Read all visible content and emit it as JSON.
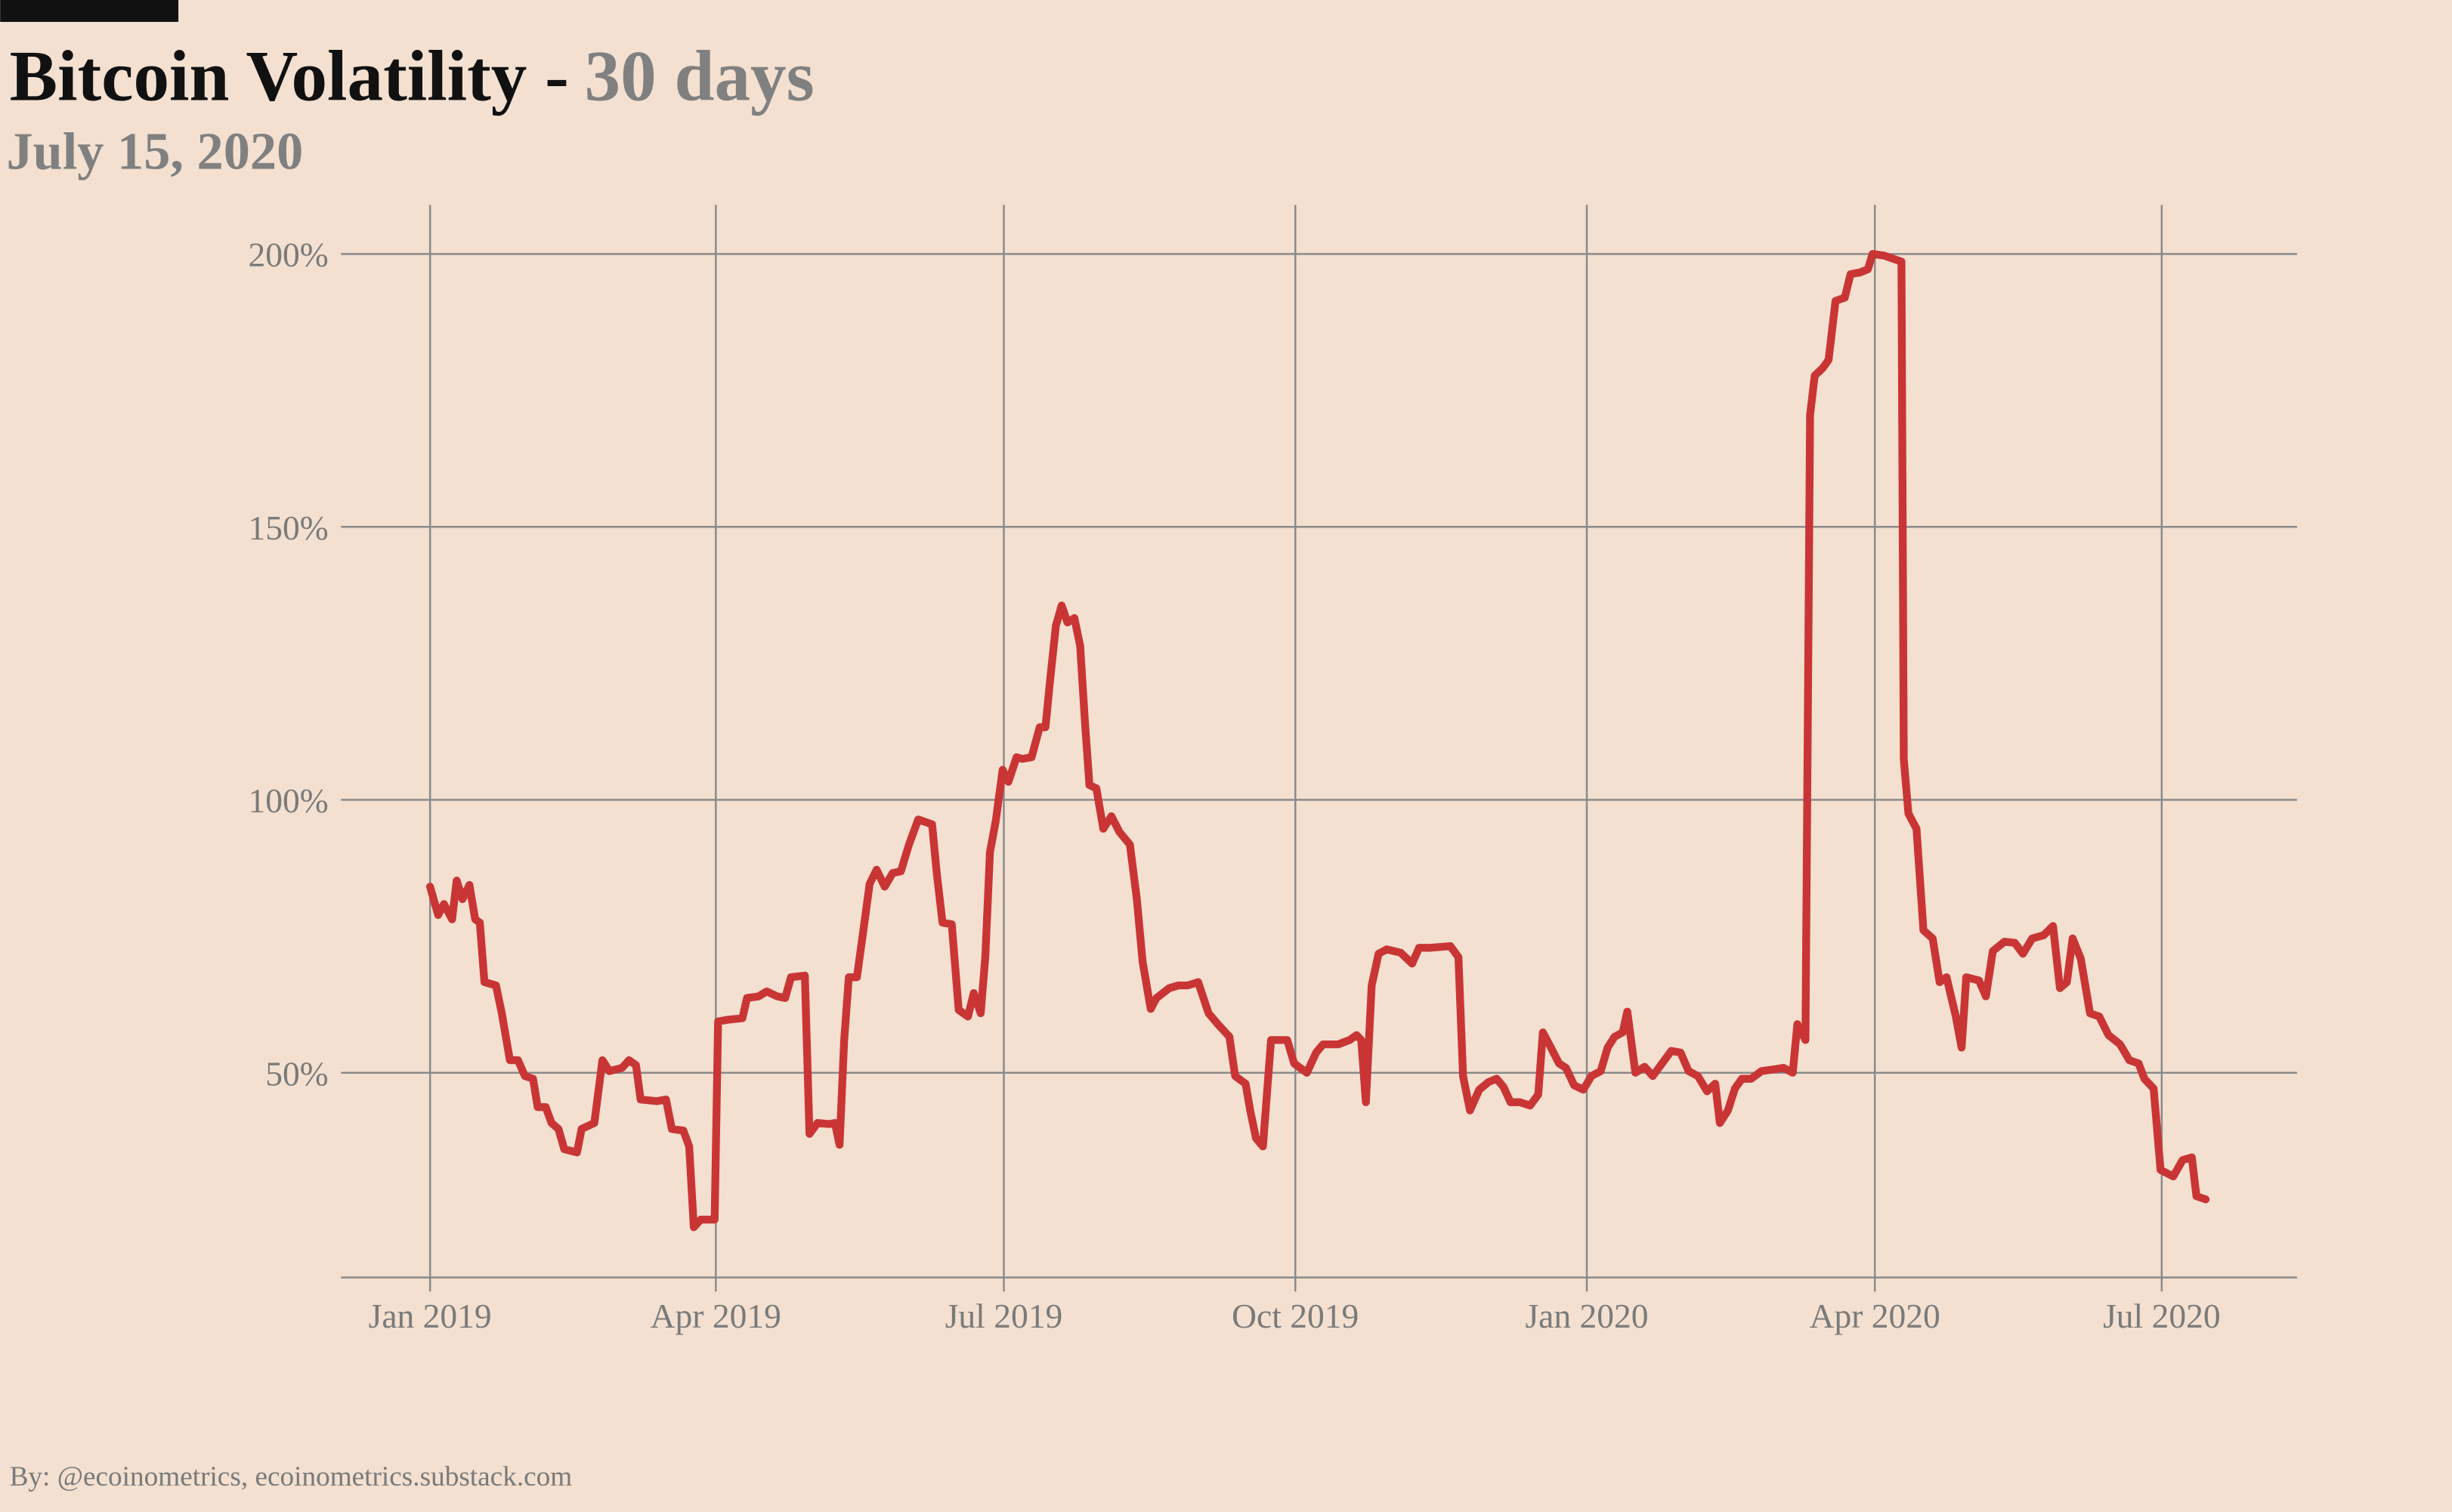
{
  "chart_data": {
    "type": "line",
    "title": "Bitcoin Volatility -",
    "title_highlight": "30 days",
    "subtitle": "July 15, 2020",
    "source": "By: @ecoinometrics, ecoinometrics.substack.com",
    "color": "#c93535",
    "grid": true,
    "xlim": [
      2018.923,
      2020.614
    ],
    "xticks": [
      {
        "value": 2019.0,
        "label": "Jan 2019"
      },
      {
        "value": 2019.247,
        "label": "Apr 2019"
      },
      {
        "value": 2019.496,
        "label": "Jul 2019"
      },
      {
        "value": 2019.748,
        "label": "Oct 2019"
      },
      {
        "value": 2020.0,
        "label": "Jan 2020"
      },
      {
        "value": 2020.249,
        "label": "Apr 2020"
      },
      {
        "value": 2020.497,
        "label": "Jul 2020"
      }
    ],
    "ylim": [
      12.5,
      209
    ],
    "yticks": [
      {
        "value": 50,
        "label": "50%"
      },
      {
        "value": 100,
        "label": "100%"
      },
      {
        "value": 150,
        "label": "150%"
      },
      {
        "value": 200,
        "label": "200%"
      }
    ],
    "x": [
      2019.0,
      2019.007,
      2019.012,
      2019.019,
      2019.023,
      2019.028,
      2019.034,
      2019.039,
      2019.043,
      2019.047,
      2019.057,
      2019.062,
      2019.069,
      2019.076,
      2019.082,
      2019.089,
      2019.093,
      2019.1,
      2019.105,
      2019.111,
      2019.116,
      2019.127,
      2019.131,
      2019.142,
      2019.149,
      2019.155,
      2019.166,
      2019.172,
      2019.178,
      2019.182,
      2019.196,
      2019.204,
      2019.209,
      2019.219,
      2019.224,
      2019.228,
      2019.234,
      2019.246,
      2019.249,
      2019.257,
      2019.27,
      2019.274,
      2019.284,
      2019.291,
      2019.3,
      2019.307,
      2019.312,
      2019.324,
      2019.328,
      2019.335,
      2019.345,
      2019.35,
      2019.354,
      2019.358,
      2019.362,
      2019.369,
      2019.374,
      2019.38,
      2019.386,
      2019.393,
      2019.4,
      2019.407,
      2019.414,
      2019.422,
      2019.434,
      2019.438,
      2019.443,
      2019.451,
      2019.457,
      2019.465,
      2019.47,
      2019.476,
      2019.48,
      2019.484,
      2019.489,
      2019.495,
      2019.5,
      2019.507,
      2019.512,
      2019.52,
      2019.527,
      2019.532,
      2019.536,
      2019.541,
      2019.546,
      2019.551,
      2019.557,
      2019.562,
      2019.566,
      2019.57,
      2019.576,
      2019.582,
      2019.589,
      2019.596,
      2019.605,
      2019.611,
      2019.616,
      2019.623,
      2019.628,
      2019.639,
      2019.647,
      2019.655,
      2019.664,
      2019.673,
      2019.681,
      2019.691,
      2019.696,
      2019.705,
      2019.709,
      2019.714,
      2019.72,
      2019.727,
      2019.741,
      2019.747,
      2019.758,
      2019.766,
      2019.772,
      2019.785,
      2019.795,
      2019.801,
      2019.805,
      2019.809,
      2019.814,
      2019.82,
      2019.827,
      2019.839,
      2019.849,
      2019.855,
      2019.865,
      2019.882,
      2019.889,
      2019.893,
      2019.899,
      2019.907,
      2019.915,
      2019.922,
      2019.928,
      2019.934,
      2019.942,
      2019.951,
      2019.958,
      2019.962,
      2019.969,
      2019.976,
      2019.982,
      2019.989,
      2019.997,
      2020.004,
      2020.012,
      2020.018,
      2020.024,
      2020.031,
      2020.035,
      2020.042,
      2020.05,
      2020.057,
      2020.065,
      2020.073,
      2020.081,
      2020.088,
      2020.096,
      2020.104,
      2020.111,
      2020.115,
      2020.122,
      2020.128,
      2020.134,
      2020.142,
      2020.151,
      2020.161,
      2020.17,
      2020.178,
      2020.182,
      2020.189,
      2020.193,
      2020.197,
      2020.204,
      2020.209,
      2020.215,
      2020.223,
      2020.228,
      2020.236,
      2020.243,
      2020.247,
      2020.257,
      2020.272,
      2020.274,
      2020.278,
      2020.285,
      2020.291,
      2020.299,
      2020.305,
      2020.311,
      2020.319,
      2020.324,
      2020.328,
      2020.339,
      2020.345,
      2020.351,
      2020.361,
      2020.37,
      2020.377,
      2020.385,
      2020.395,
      2020.403,
      2020.409,
      2020.415,
      2020.42,
      2020.427,
      2020.435,
      2020.443,
      2020.451,
      2020.461,
      2020.469,
      2020.477,
      2020.482,
      2020.49,
      2020.496,
      2020.507,
      2020.515,
      2020.523,
      2020.527,
      2020.535
    ],
    "values": [
      84.1,
      78.9,
      80.9,
      78.1,
      85.2,
      81.8,
      84.4,
      78.1,
      77.5,
      66.6,
      66.0,
      60.9,
      52.3,
      52.3,
      49.4,
      48.9,
      43.7,
      43.7,
      40.8,
      39.7,
      36.0,
      35.4,
      39.7,
      40.8,
      52.3,
      50.3,
      50.9,
      52.3,
      51.4,
      45.1,
      44.8,
      45.1,
      39.7,
      39.4,
      36.5,
      21.7,
      23.1,
      23.1,
      59.4,
      59.7,
      60.0,
      63.7,
      64.0,
      64.9,
      64.0,
      63.7,
      67.5,
      67.8,
      38.8,
      40.8,
      40.6,
      40.8,
      36.8,
      56.0,
      67.5,
      67.5,
      75.2,
      84.6,
      87.2,
      84.1,
      86.6,
      86.9,
      91.8,
      96.4,
      95.5,
      86.6,
      77.5,
      77.2,
      61.5,
      60.3,
      64.6,
      60.9,
      71.2,
      90.4,
      96.1,
      105.5,
      103.3,
      107.8,
      107.5,
      107.8,
      113.3,
      113.3,
      121.9,
      131.9,
      135.6,
      132.5,
      133.3,
      128.2,
      114.7,
      102.7,
      102.1,
      94.7,
      97.0,
      94.1,
      91.8,
      81.8,
      70.3,
      61.7,
      63.7,
      65.5,
      66.0,
      66.0,
      66.6,
      60.9,
      58.9,
      56.6,
      49.4,
      48.0,
      43.1,
      38.0,
      36.5,
      56.0,
      56.0,
      51.7,
      50.0,
      53.7,
      55.2,
      55.2,
      56.0,
      56.9,
      56.0,
      44.6,
      66.0,
      71.8,
      72.6,
      72.0,
      70.0,
      72.9,
      72.9,
      73.2,
      71.2,
      49.4,
      43.1,
      46.9,
      48.3,
      48.9,
      47.4,
      44.6,
      44.6,
      44.0,
      46.0,
      57.4,
      54.6,
      51.7,
      50.9,
      47.7,
      46.9,
      49.4,
      50.3,
      54.6,
      56.6,
      57.4,
      61.2,
      50.0,
      51.1,
      49.4,
      51.7,
      54.0,
      53.7,
      50.3,
      49.4,
      46.6,
      48.0,
      40.8,
      43.1,
      47.1,
      48.9,
      48.9,
      50.3,
      50.6,
      50.9,
      50.0,
      58.9,
      56.0,
      170.5,
      177.7,
      179.1,
      180.6,
      191.4,
      192.0,
      196.3,
      196.6,
      197.2,
      200.0,
      199.7,
      198.6,
      107.5,
      97.5,
      94.7,
      76.1,
      74.6,
      66.6,
      67.5,
      60.3,
      54.6,
      67.5,
      66.9,
      64.0,
      72.3,
      74.0,
      73.8,
      71.8,
      74.6,
      75.2,
      76.9,
      65.5,
      66.6,
      74.6,
      70.9,
      60.9,
      60.3,
      56.9,
      55.2,
      52.3,
      51.7,
      48.9,
      47.1,
      32.2,
      31.0,
      34.0,
      34.5,
      27.4,
      26.8
    ]
  }
}
